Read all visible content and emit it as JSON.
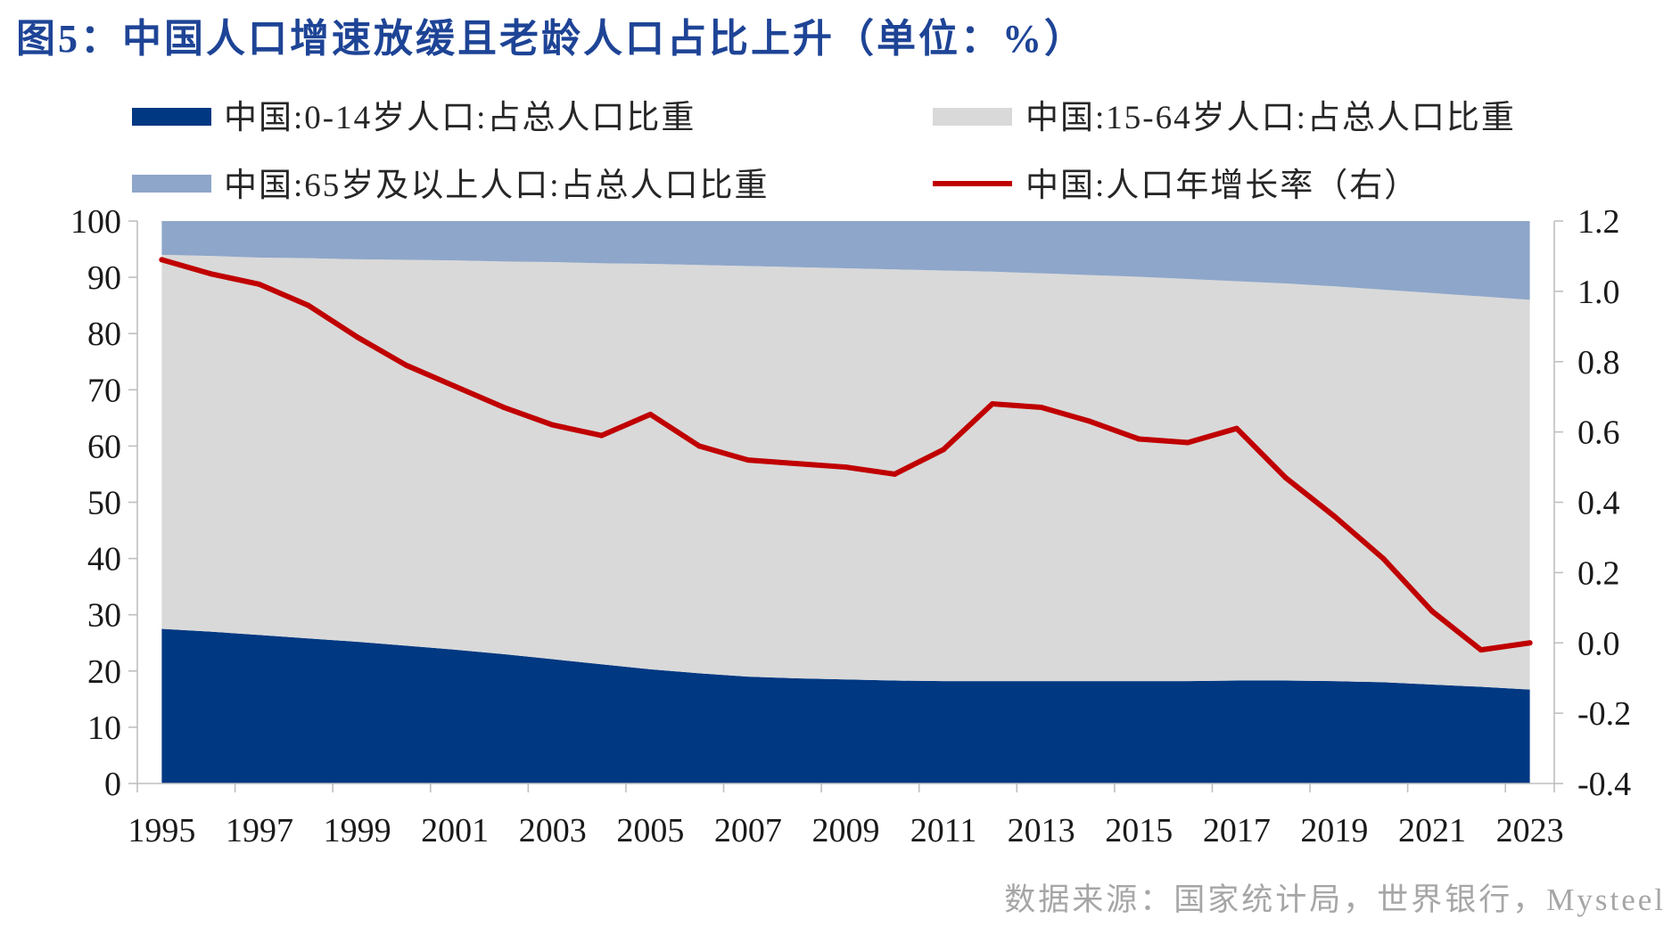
{
  "chart_data": {
    "type": "area",
    "title": "图5：中国人口增速放缓且老龄人口占比上升（单位：%）",
    "stacked": true,
    "x": [
      1995,
      1996,
      1997,
      1998,
      1999,
      2000,
      2001,
      2002,
      2003,
      2004,
      2005,
      2006,
      2007,
      2008,
      2009,
      2010,
      2011,
      2012,
      2013,
      2014,
      2015,
      2016,
      2017,
      2018,
      2019,
      2020,
      2021,
      2022,
      2023
    ],
    "x_tick_labels": [
      "1995",
      "1997",
      "1999",
      "2001",
      "2003",
      "2005",
      "2007",
      "2009",
      "2011",
      "2013",
      "2015",
      "2017",
      "2019",
      "2021",
      "2023"
    ],
    "ylim": [
      0,
      100
    ],
    "y_ticks": [
      "0",
      "10",
      "20",
      "30",
      "40",
      "50",
      "60",
      "70",
      "80",
      "90",
      "100"
    ],
    "y2lim": [
      -0.4,
      1.2
    ],
    "y2_ticks": [
      "-0.4",
      "-0.2",
      "0.0",
      "0.2",
      "0.4",
      "0.6",
      "0.8",
      "1.0",
      "1.2"
    ],
    "grid": false,
    "legend_position": "top",
    "series": [
      {
        "name": "中国:0-14岁人口:占总人口比重",
        "type": "area",
        "right_axis": false,
        "color": "#003882",
        "values": [
          27.5,
          27.0,
          26.4,
          25.8,
          25.2,
          24.5,
          23.8,
          23.0,
          22.1,
          21.2,
          20.3,
          19.6,
          19.0,
          18.7,
          18.5,
          18.3,
          18.2,
          18.2,
          18.2,
          18.2,
          18.2,
          18.2,
          18.3,
          18.3,
          18.2,
          18.0,
          17.6,
          17.2,
          16.7
        ]
      },
      {
        "name": "中国:15-64岁人口:占总人口比重",
        "type": "area",
        "right_axis": false,
        "color": "#d9d9d9",
        "values": [
          66.5,
          66.8,
          67.1,
          67.6,
          68.0,
          68.6,
          69.2,
          69.8,
          70.6,
          71.3,
          72.1,
          72.6,
          73.0,
          73.1,
          73.1,
          73.1,
          73.0,
          72.8,
          72.5,
          72.2,
          71.9,
          71.5,
          71.0,
          70.6,
          70.2,
          69.8,
          69.6,
          69.4,
          69.3
        ]
      },
      {
        "name": "中国:65岁及以上人口:占总人口比重",
        "type": "area",
        "right_axis": false,
        "color": "#8ea6c9",
        "values": [
          6.0,
          6.2,
          6.5,
          6.6,
          6.8,
          6.9,
          7.0,
          7.2,
          7.3,
          7.5,
          7.6,
          7.8,
          8.0,
          8.2,
          8.4,
          8.6,
          8.8,
          9.0,
          9.3,
          9.6,
          9.9,
          10.3,
          10.7,
          11.1,
          11.6,
          12.2,
          12.8,
          13.4,
          14.0
        ]
      },
      {
        "name": "中国:人口年增长率（右）",
        "type": "line",
        "right_axis": true,
        "color": "#c00000",
        "values": [
          1.09,
          1.05,
          1.02,
          0.96,
          0.87,
          0.79,
          0.73,
          0.67,
          0.62,
          0.59,
          0.65,
          0.56,
          0.52,
          0.51,
          0.5,
          0.48,
          0.55,
          0.68,
          0.67,
          0.63,
          0.58,
          0.57,
          0.61,
          0.47,
          0.36,
          0.24,
          0.09,
          -0.02,
          0.0
        ]
      }
    ]
  },
  "source": "数据来源：国家统计局，世界银行，Mysteel"
}
